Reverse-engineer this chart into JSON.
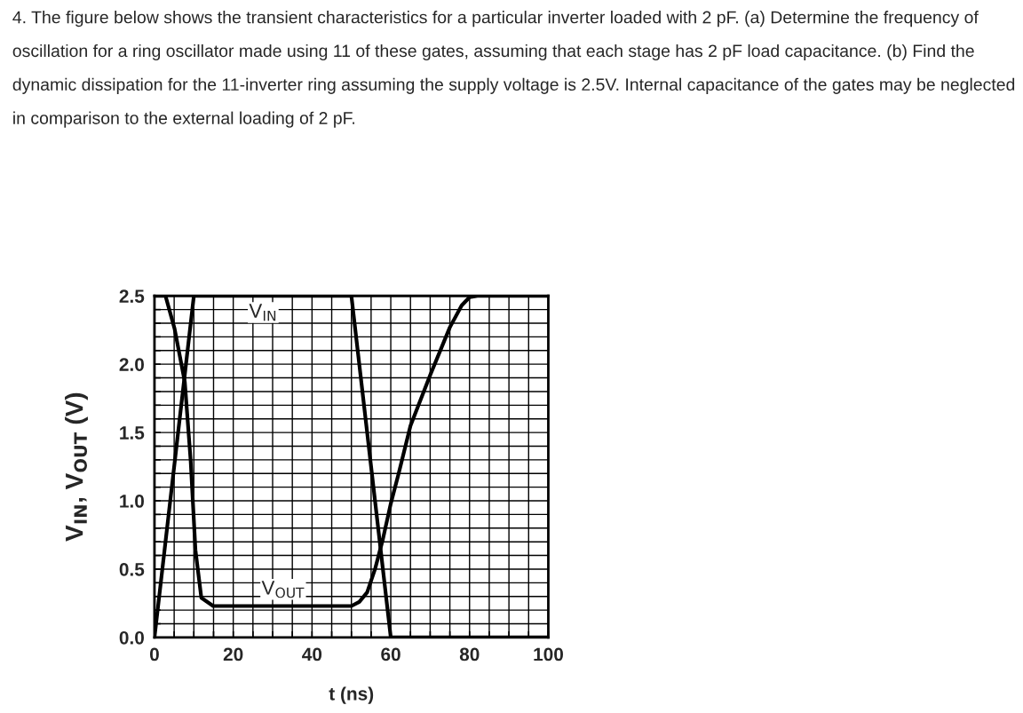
{
  "chart_data": {
    "type": "line",
    "title": "4. The figure below shows the transient characteristics for a particular inverter loaded with 2 pF. (a) Determine the frequency of oscillation for a ring oscillator made using 11 of these gates, assuming that each stage has 2 pF load capacitance. (b) Find the dynamic dissipation for the 11-inverter ring assuming the supply voltage is 2.5V. Internal capacitance of the gates may be neglected in comparison to the external loading of 2 pF.",
    "xlabel": "t (ns)",
    "ylabel": "V$_{IN}$, V$_{OUT}$ (V)",
    "series": [
      {
        "name": "V$_{IN}$",
        "color": "#000000",
        "x": [
          0,
          10,
          50,
          60,
          100
        ],
        "values": [
          0,
          2.5,
          2.5,
          0,
          0
        ]
      },
      {
        "name": "V$_{OUT}$",
        "color": "#000000",
        "x": [
          0,
          2.8,
          5.1,
          7.7,
          9.2,
          10.4,
          11.9,
          14.9,
          50,
          52,
          54,
          56,
          58,
          60,
          62,
          65,
          70,
          75,
          78,
          80,
          82,
          100
        ],
        "values": [
          2.5,
          2.5,
          2.26,
          1.87,
          1.29,
          0.64,
          0.29,
          0.23,
          0.23,
          0.26,
          0.33,
          0.5,
          0.72,
          0.98,
          1.2,
          1.55,
          1.92,
          2.27,
          2.43,
          2.49,
          2.5,
          2.5
        ]
      }
    ],
    "xlim": [
      0,
      100
    ],
    "ylim": [
      0,
      2.5
    ],
    "xticks": [
      0,
      {
        "value": 5,
        "label": null
      },
      {
        "value": 10,
        "label": null
      },
      {
        "value": 15,
        "label": null
      },
      20,
      {
        "value": 25,
        "label": null
      },
      {
        "value": 30,
        "label": null
      },
      {
        "value": 35,
        "label": null
      },
      40,
      {
        "value": 45,
        "label": null
      },
      {
        "value": 50,
        "label": null
      },
      {
        "value": 55,
        "label": null
      },
      60,
      {
        "value": 65,
        "label": null
      },
      {
        "value": 70,
        "label": null
      },
      {
        "value": 75,
        "label": null
      },
      80,
      {
        "value": 85,
        "label": null
      },
      {
        "value": 90,
        "label": null
      },
      {
        "value": 95,
        "label": null
      },
      100
    ],
    "yticks": [
      {
        "value": 0,
        "label": "0.0"
      },
      {
        "value": 0.1,
        "label": null
      },
      {
        "value": 0.2,
        "label": null
      },
      {
        "value": 0.3,
        "label": null
      },
      {
        "value": 0.4,
        "label": null
      },
      0.5,
      {
        "value": 0.6,
        "label": null
      },
      {
        "value": 0.7,
        "label": null
      },
      {
        "value": 0.8,
        "label": null
      },
      {
        "value": 0.9,
        "label": null
      },
      {
        "value": 1,
        "label": "1.0"
      },
      {
        "value": 1.1,
        "label": null
      },
      {
        "value": 1.2,
        "label": null
      },
      {
        "value": 1.3,
        "label": null
      },
      {
        "value": 1.4,
        "label": null
      },
      1.5,
      {
        "value": 1.6,
        "label": null
      },
      {
        "value": 1.7,
        "label": null
      },
      {
        "value": 1.8,
        "label": null
      },
      {
        "value": 1.9,
        "label": null
      },
      {
        "value": 2,
        "label": "2.0"
      },
      {
        "value": 2.1,
        "label": null
      },
      {
        "value": 2.2,
        "label": null
      },
      {
        "value": 2.3,
        "label": null
      },
      {
        "value": 2.4,
        "label": null
      },
      2.5
    ],
    "grid": true,
    "legend": false,
    "marker": "none",
    "line_style": "solid"
  }
}
